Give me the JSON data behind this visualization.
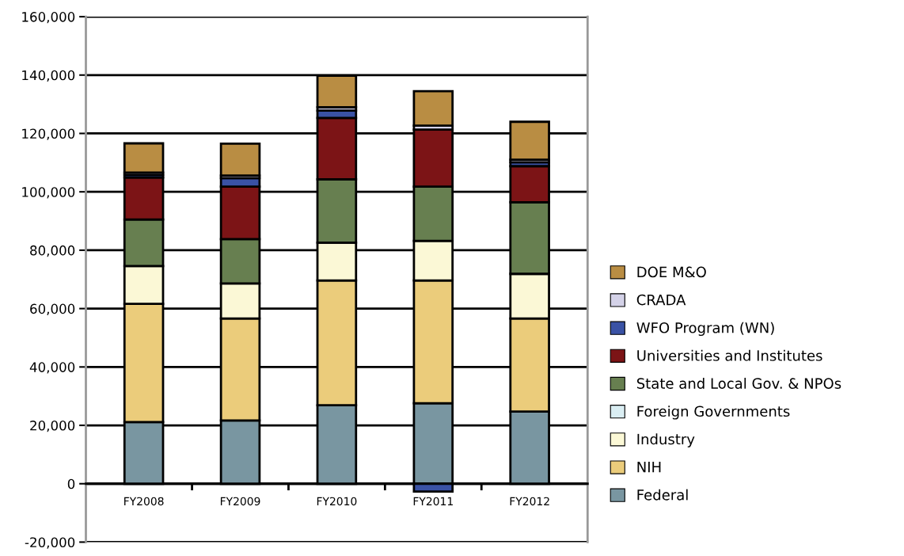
{
  "chart_data": {
    "type": "bar",
    "stacked": true,
    "categories": [
      "FY2008",
      "FY2009",
      "FY2010",
      "FY2011",
      "FY2012"
    ],
    "series": [
      {
        "name": "Federal",
        "color": "#7996a1",
        "values": [
          21100,
          21700,
          26900,
          27600,
          24700
        ]
      },
      {
        "name": "NIH",
        "color": "#ebcc7b",
        "values": [
          40500,
          34900,
          42700,
          42000,
          31900
        ]
      },
      {
        "name": "Industry",
        "color": "#fbf8d6",
        "values": [
          13000,
          12000,
          13000,
          13600,
          15300
        ]
      },
      {
        "name": "Foreign Governments",
        "color": "#daeef3",
        "values": [
          null,
          null,
          null,
          null,
          null
        ]
      },
      {
        "name": "State and Local Gov. & NPOs",
        "color": "#677f50",
        "values": [
          15900,
          15200,
          21700,
          18600,
          24500
        ]
      },
      {
        "name": "Universities and Institutes",
        "color": "#7c1416",
        "values": [
          14400,
          18000,
          21000,
          19500,
          12400
        ]
      },
      {
        "name": "WFO Program (WN)",
        "color": "#3a52a5",
        "values": [
          900,
          2900,
          2500,
          -2700,
          1300
        ]
      },
      {
        "name": "CRADA",
        "color": "#d4d2e8",
        "values": [
          800,
          900,
          1200,
          1400,
          900
        ]
      },
      {
        "name": "DOE M&O",
        "color": "#b98d43",
        "values": [
          10000,
          10900,
          10800,
          11800,
          13000
        ]
      }
    ],
    "ylim": [
      -20000,
      160000
    ],
    "yticks": [
      {
        "value": -20000,
        "label": "-20,000"
      },
      0,
      {
        "value": 20000,
        "label": "20,000"
      },
      {
        "value": 40000,
        "label": "40,000"
      },
      {
        "value": 60000,
        "label": "60,000"
      },
      {
        "value": 80000,
        "label": "80,000"
      },
      {
        "value": 100000,
        "label": "100,000"
      },
      {
        "value": 120000,
        "label": "120,000"
      },
      {
        "value": 140000,
        "label": "140,000"
      },
      {
        "value": 160000,
        "label": "160,000"
      }
    ],
    "grid": "y",
    "legend": "right"
  }
}
